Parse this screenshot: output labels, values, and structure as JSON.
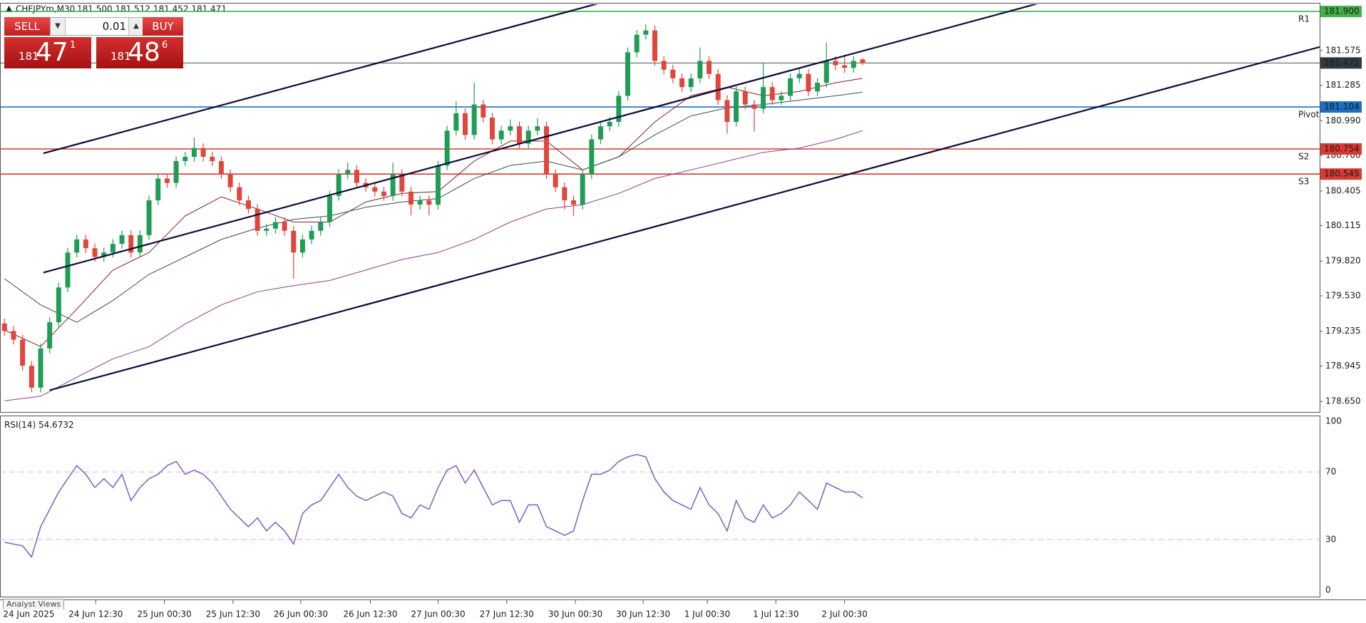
{
  "trade_panel": {
    "sell": "SELL",
    "buy": "BUY",
    "lot": "0.01",
    "bid": [
      "181",
      "47",
      "1"
    ],
    "ask": [
      "181",
      "48",
      "6"
    ]
  },
  "tabs": [
    "Analyst Views"
  ],
  "chart_data": {
    "type": "candlestick",
    "title": "CHFJPYm,M30",
    "subtitle": "181.500 181.512 181.452 181.471",
    "open": [
      179.3,
      179.237,
      179.165,
      178.947,
      178.765,
      179.092,
      179.31,
      179.6,
      179.891,
      180.0,
      179.927,
      179.854,
      179.891,
      179.963,
      180.036,
      179.891,
      180.036,
      180.326,
      180.508,
      180.471,
      180.653,
      180.689,
      180.762,
      180.689,
      180.653,
      180.544,
      180.435,
      180.326,
      180.254,
      180.072,
      180.09,
      180.145,
      180.072,
      179.891,
      180.0,
      180.072,
      180.145,
      180.363,
      180.544,
      180.58,
      180.471,
      180.435,
      180.399,
      180.363,
      180.544,
      180.399,
      180.29,
      180.326,
      180.29,
      180.617,
      180.907,
      181.052,
      180.871,
      181.125,
      181.016,
      180.834,
      180.907,
      180.943,
      180.798,
      180.907,
      180.943,
      180.544,
      180.435,
      180.326,
      180.29,
      180.544,
      180.834,
      180.943,
      180.98,
      181.197,
      181.56,
      181.706,
      181.742,
      181.488,
      181.415,
      181.343,
      181.27,
      181.343,
      181.488,
      181.379,
      181.161,
      180.98,
      181.234,
      181.125,
      181.089,
      181.27,
      181.161,
      181.197,
      181.343,
      181.38,
      181.234,
      181.306,
      181.488,
      181.452,
      181.43,
      181.5
    ],
    "high": [
      179.34,
      179.277,
      179.205,
      178.987,
      179.132,
      179.35,
      179.64,
      179.931,
      180.04,
      180.04,
      179.967,
      179.931,
      180.003,
      180.076,
      180.076,
      180.076,
      180.366,
      180.548,
      180.548,
      180.693,
      180.729,
      180.85,
      180.802,
      180.729,
      180.693,
      180.584,
      180.475,
      180.366,
      180.294,
      180.13,
      180.185,
      180.185,
      180.112,
      180.04,
      180.112,
      180.185,
      180.403,
      180.584,
      180.64,
      180.62,
      180.511,
      180.475,
      180.439,
      180.64,
      180.584,
      180.439,
      180.366,
      180.366,
      180.657,
      180.947,
      181.15,
      181.092,
      181.306,
      181.165,
      181.056,
      180.947,
      181.0,
      180.983,
      180.947,
      181.01,
      180.983,
      180.584,
      180.475,
      180.366,
      180.584,
      180.874,
      180.983,
      181.02,
      181.237,
      181.6,
      181.746,
      181.793,
      181.782,
      181.528,
      181.455,
      181.383,
      181.383,
      181.6,
      181.528,
      181.419,
      181.201,
      181.274,
      181.274,
      181.165,
      181.47,
      181.31,
      181.237,
      181.383,
      181.42,
      181.42,
      181.346,
      181.64,
      181.528,
      181.54,
      181.528,
      181.512
    ],
    "low": [
      179.197,
      179.125,
      178.907,
      178.729,
      178.725,
      179.052,
      179.27,
      179.56,
      179.851,
      179.887,
      179.814,
      179.814,
      179.851,
      179.923,
      179.851,
      179.851,
      179.996,
      180.286,
      180.431,
      180.431,
      180.613,
      180.649,
      180.649,
      180.613,
      180.504,
      180.395,
      180.286,
      180.214,
      180.032,
      180.032,
      180.05,
      180.032,
      179.673,
      179.851,
      179.96,
      180.032,
      180.105,
      180.323,
      180.504,
      180.431,
      180.395,
      180.359,
      180.323,
      180.323,
      180.359,
      180.2,
      180.25,
      180.2,
      180.25,
      180.577,
      180.867,
      180.831,
      180.831,
      180.976,
      180.794,
      180.794,
      180.867,
      180.758,
      180.758,
      180.867,
      180.504,
      180.395,
      180.25,
      180.196,
      180.25,
      180.504,
      180.794,
      180.903,
      180.94,
      181.157,
      181.52,
      181.666,
      181.448,
      181.375,
      181.303,
      181.23,
      181.23,
      181.303,
      181.339,
      181.121,
      180.88,
      180.94,
      181.085,
      180.9,
      181.049,
      181.121,
      181.121,
      181.157,
      181.303,
      181.194,
      181.194,
      181.266,
      181.412,
      181.39,
      181.39,
      181.452
    ],
    "close": [
      179.237,
      179.165,
      178.947,
      178.765,
      179.092,
      179.31,
      179.6,
      179.891,
      180.0,
      179.927,
      179.854,
      179.891,
      179.963,
      180.036,
      179.891,
      180.036,
      180.326,
      180.508,
      180.471,
      180.653,
      180.689,
      180.762,
      180.689,
      180.653,
      180.544,
      180.435,
      180.326,
      180.254,
      180.072,
      180.09,
      180.145,
      180.072,
      179.891,
      180.0,
      180.072,
      180.145,
      180.363,
      180.544,
      180.58,
      180.471,
      180.435,
      180.399,
      180.363,
      180.544,
      180.399,
      180.29,
      180.326,
      180.29,
      180.617,
      180.907,
      181.052,
      180.871,
      181.125,
      181.016,
      180.834,
      180.907,
      180.943,
      180.798,
      180.907,
      180.943,
      180.544,
      180.435,
      180.326,
      180.29,
      180.544,
      180.834,
      180.943,
      180.98,
      181.197,
      181.56,
      181.706,
      181.742,
      181.488,
      181.415,
      181.343,
      181.27,
      181.343,
      181.488,
      181.379,
      181.161,
      180.98,
      181.234,
      181.125,
      181.089,
      181.27,
      181.161,
      181.197,
      181.343,
      181.38,
      181.234,
      181.306,
      181.488,
      181.452,
      181.43,
      181.488,
      181.471
    ],
    "up_color": "#1f9d55",
    "down_color": "#e0463c",
    "xlim": [
      -0.5,
      145.6
    ],
    "xticks": [
      {
        "value": 0,
        "label": "24 Jun 2025"
      },
      {
        "value": 10.1,
        "label": "24 Jun 12:30"
      },
      {
        "value": 17.7,
        "label": "25 Jun 00:30"
      },
      {
        "value": 25.3,
        "label": "25 Jun 12:30"
      },
      {
        "value": 32.8,
        "label": "26 Jun 00:30"
      },
      {
        "value": 40.5,
        "label": "26 Jun 12:30"
      },
      {
        "value": 48.0,
        "label": "27 Jun 00:30"
      },
      {
        "value": 55.6,
        "label": "27 Jun 12:30"
      },
      {
        "value": 63.2,
        "label": "30 Jun 00:30"
      },
      {
        "value": 70.7,
        "label": "30 Jun 12:30"
      },
      {
        "value": 77.8,
        "label": "1 Jul 00:30"
      },
      {
        "value": 85.4,
        "label": "1 Jul 12:30"
      },
      {
        "value": 93.0,
        "label": "2 Jul 00:30"
      }
    ],
    "ylim": [
      178.562,
      181.96
    ],
    "yticks": [
      {
        "value": 181.575,
        "label": "181.575"
      },
      {
        "value": 181.285,
        "label": "181.285"
      },
      {
        "value": 180.99,
        "label": "180.990"
      },
      {
        "value": 180.7,
        "label": "180.700"
      },
      {
        "value": 180.405,
        "label": "180.405"
      },
      {
        "value": 180.115,
        "label": "180.115"
      },
      {
        "value": 179.82,
        "label": "179.820"
      },
      {
        "value": 179.53,
        "label": "179.530"
      },
      {
        "value": 179.235,
        "label": "179.235"
      },
      {
        "value": 178.945,
        "label": "178.945"
      },
      {
        "value": 178.65,
        "label": "178.650"
      }
    ],
    "moving_averages": [
      {
        "color": "#8b1c1c",
        "x": [
          0,
          4,
          8,
          12,
          16,
          20,
          24,
          28,
          32,
          36,
          40,
          44,
          48,
          52,
          56,
          60,
          64,
          68,
          72,
          76,
          80,
          84,
          88,
          92,
          95
        ],
        "values": [
          179.245,
          179.107,
          179.419,
          179.745,
          179.891,
          180.196,
          180.355,
          180.254,
          180.145,
          180.145,
          180.312,
          180.384,
          180.399,
          180.653,
          180.82,
          180.82,
          180.58,
          180.689,
          180.98,
          181.197,
          181.27,
          181.197,
          181.234,
          181.306,
          181.343
        ]
      },
      {
        "color": "#2f4f4f",
        "x": [
          0,
          4,
          8,
          12,
          16,
          20,
          24,
          28,
          32,
          36,
          40,
          44,
          48,
          52,
          56,
          60,
          64,
          68,
          72,
          76,
          80,
          84,
          88,
          92,
          95
        ],
        "values": [
          179.673,
          179.455,
          179.31,
          179.491,
          179.709,
          179.854,
          180.0,
          180.094,
          180.167,
          180.196,
          180.268,
          180.312,
          180.341,
          180.508,
          180.617,
          180.653,
          180.58,
          180.689,
          180.871,
          181.03,
          181.096,
          181.125,
          181.161,
          181.197,
          181.227
        ]
      },
      {
        "color": "#8e3a8e",
        "x": [
          0,
          4,
          8,
          12,
          16,
          20,
          24,
          28,
          32,
          36,
          40,
          44,
          48,
          52,
          56,
          60,
          64,
          68,
          72,
          76,
          80,
          84,
          88,
          92,
          95
        ],
        "values": [
          178.656,
          178.693,
          178.852,
          179.005,
          179.107,
          179.295,
          179.455,
          179.564,
          179.615,
          179.658,
          179.745,
          179.833,
          179.891,
          180.0,
          180.145,
          180.254,
          180.29,
          180.384,
          180.508,
          180.58,
          180.653,
          180.726,
          180.762,
          180.834,
          180.907
        ]
      }
    ],
    "trendlines": [
      {
        "color": "#0b0b3b",
        "x": [
          4.3,
          66.1
        ],
        "values": [
          180.718,
          181.974
        ]
      },
      {
        "color": "#0b0b3b",
        "x": [
          4.3,
          114.8
        ],
        "values": [
          179.724,
          181.974
        ]
      },
      {
        "color": "#0b0b3b",
        "x": [
          5.0,
          145.6
        ],
        "values": [
          178.744,
          181.604
        ]
      }
    ],
    "levels": [
      {
        "name": "R1",
        "value": 181.9,
        "label": "181.900",
        "color": "#43b047"
      },
      {
        "value": 181.471,
        "label": "181.471",
        "color": "#2f3b40"
      },
      {
        "name": "Pivot",
        "value": 181.104,
        "label": "181.104",
        "color": "#1f6fc0"
      },
      {
        "name": "S2",
        "value": 180.754,
        "label": "180.754",
        "color": "#d93a32"
      },
      {
        "name": "S3",
        "value": 180.545,
        "label": "180.545",
        "color": "#d93a32"
      }
    ],
    "rsi": {
      "name": "RSI(14)",
      "color": "#7b5fc4",
      "ylim": [
        0,
        100
      ],
      "yticks": [
        0,
        30,
        70,
        100
      ],
      "values": [
        28.4,
        27.3,
        26.3,
        19.6,
        37.6,
        47.9,
        58.2,
        66.0,
        73.7,
        68.6,
        60.8,
        66.0,
        60.8,
        68.6,
        53.1,
        60.8,
        66.0,
        68.6,
        73.7,
        76.3,
        68.6,
        71.1,
        68.6,
        63.4,
        55.7,
        47.9,
        42.8,
        37.6,
        42.8,
        35.1,
        40.2,
        35.1,
        27.3,
        45.4,
        50.5,
        53.1,
        60.8,
        68.6,
        60.8,
        55.7,
        53.1,
        55.7,
        58.2,
        55.7,
        45.4,
        42.8,
        50.5,
        47.9,
        60.8,
        71.1,
        73.7,
        63.4,
        71.1,
        60.8,
        50.5,
        53.1,
        53.1,
        40.2,
        50.5,
        50.5,
        37.6,
        35.1,
        32.5,
        35.1,
        53.1,
        68.6,
        68.6,
        71.1,
        76.3,
        78.9,
        80.4,
        78.9,
        66.0,
        58.2,
        53.1,
        50.5,
        47.9,
        60.8,
        50.5,
        45.4,
        35.1,
        53.1,
        42.8,
        40.2,
        50.5,
        42.8,
        45.4,
        50.5,
        58.2,
        53.1,
        47.9,
        63.4,
        60.8,
        58.2,
        58.2,
        54.6732
      ]
    }
  }
}
